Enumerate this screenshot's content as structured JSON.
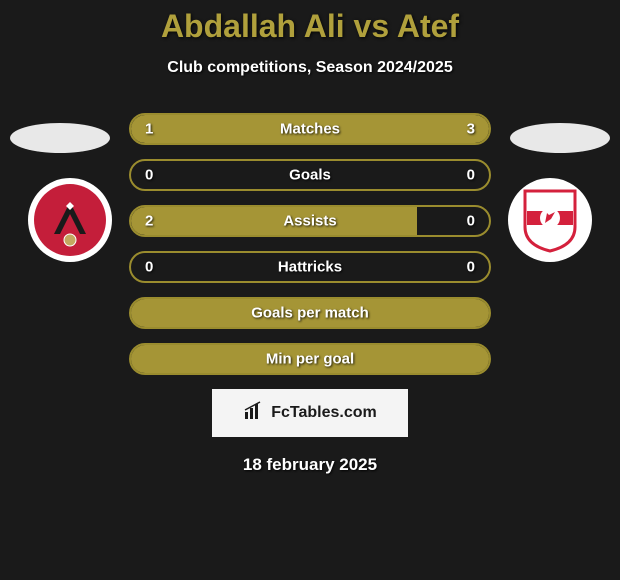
{
  "title": "Abdallah Ali vs Atef",
  "subtitle": "Club competitions, Season 2024/2025",
  "date": "18 february 2025",
  "watermark": "FcTables.com",
  "colors": {
    "accent": "#a59536",
    "border": "#9a8c2e",
    "bg": "#1a1a1a",
    "text": "#ffffff",
    "ahly": "#c41e3a",
    "zamalek_red": "#d4213c"
  },
  "stats": [
    {
      "label": "Matches",
      "left_val": "1",
      "right_val": "3",
      "left_pct": 25,
      "right_pct": 75
    },
    {
      "label": "Goals",
      "left_val": "0",
      "right_val": "0",
      "left_pct": 0,
      "right_pct": 0
    },
    {
      "label": "Assists",
      "left_val": "2",
      "right_val": "0",
      "left_pct": 80,
      "right_pct": 0
    },
    {
      "label": "Hattricks",
      "left_val": "0",
      "right_val": "0",
      "left_pct": 0,
      "right_pct": 0
    },
    {
      "label": "Goals per match",
      "left_val": "",
      "right_val": "",
      "left_pct": 100,
      "right_pct": 0,
      "full": true
    },
    {
      "label": "Min per goal",
      "left_val": "",
      "right_val": "",
      "left_pct": 100,
      "right_pct": 0,
      "full": true
    }
  ]
}
